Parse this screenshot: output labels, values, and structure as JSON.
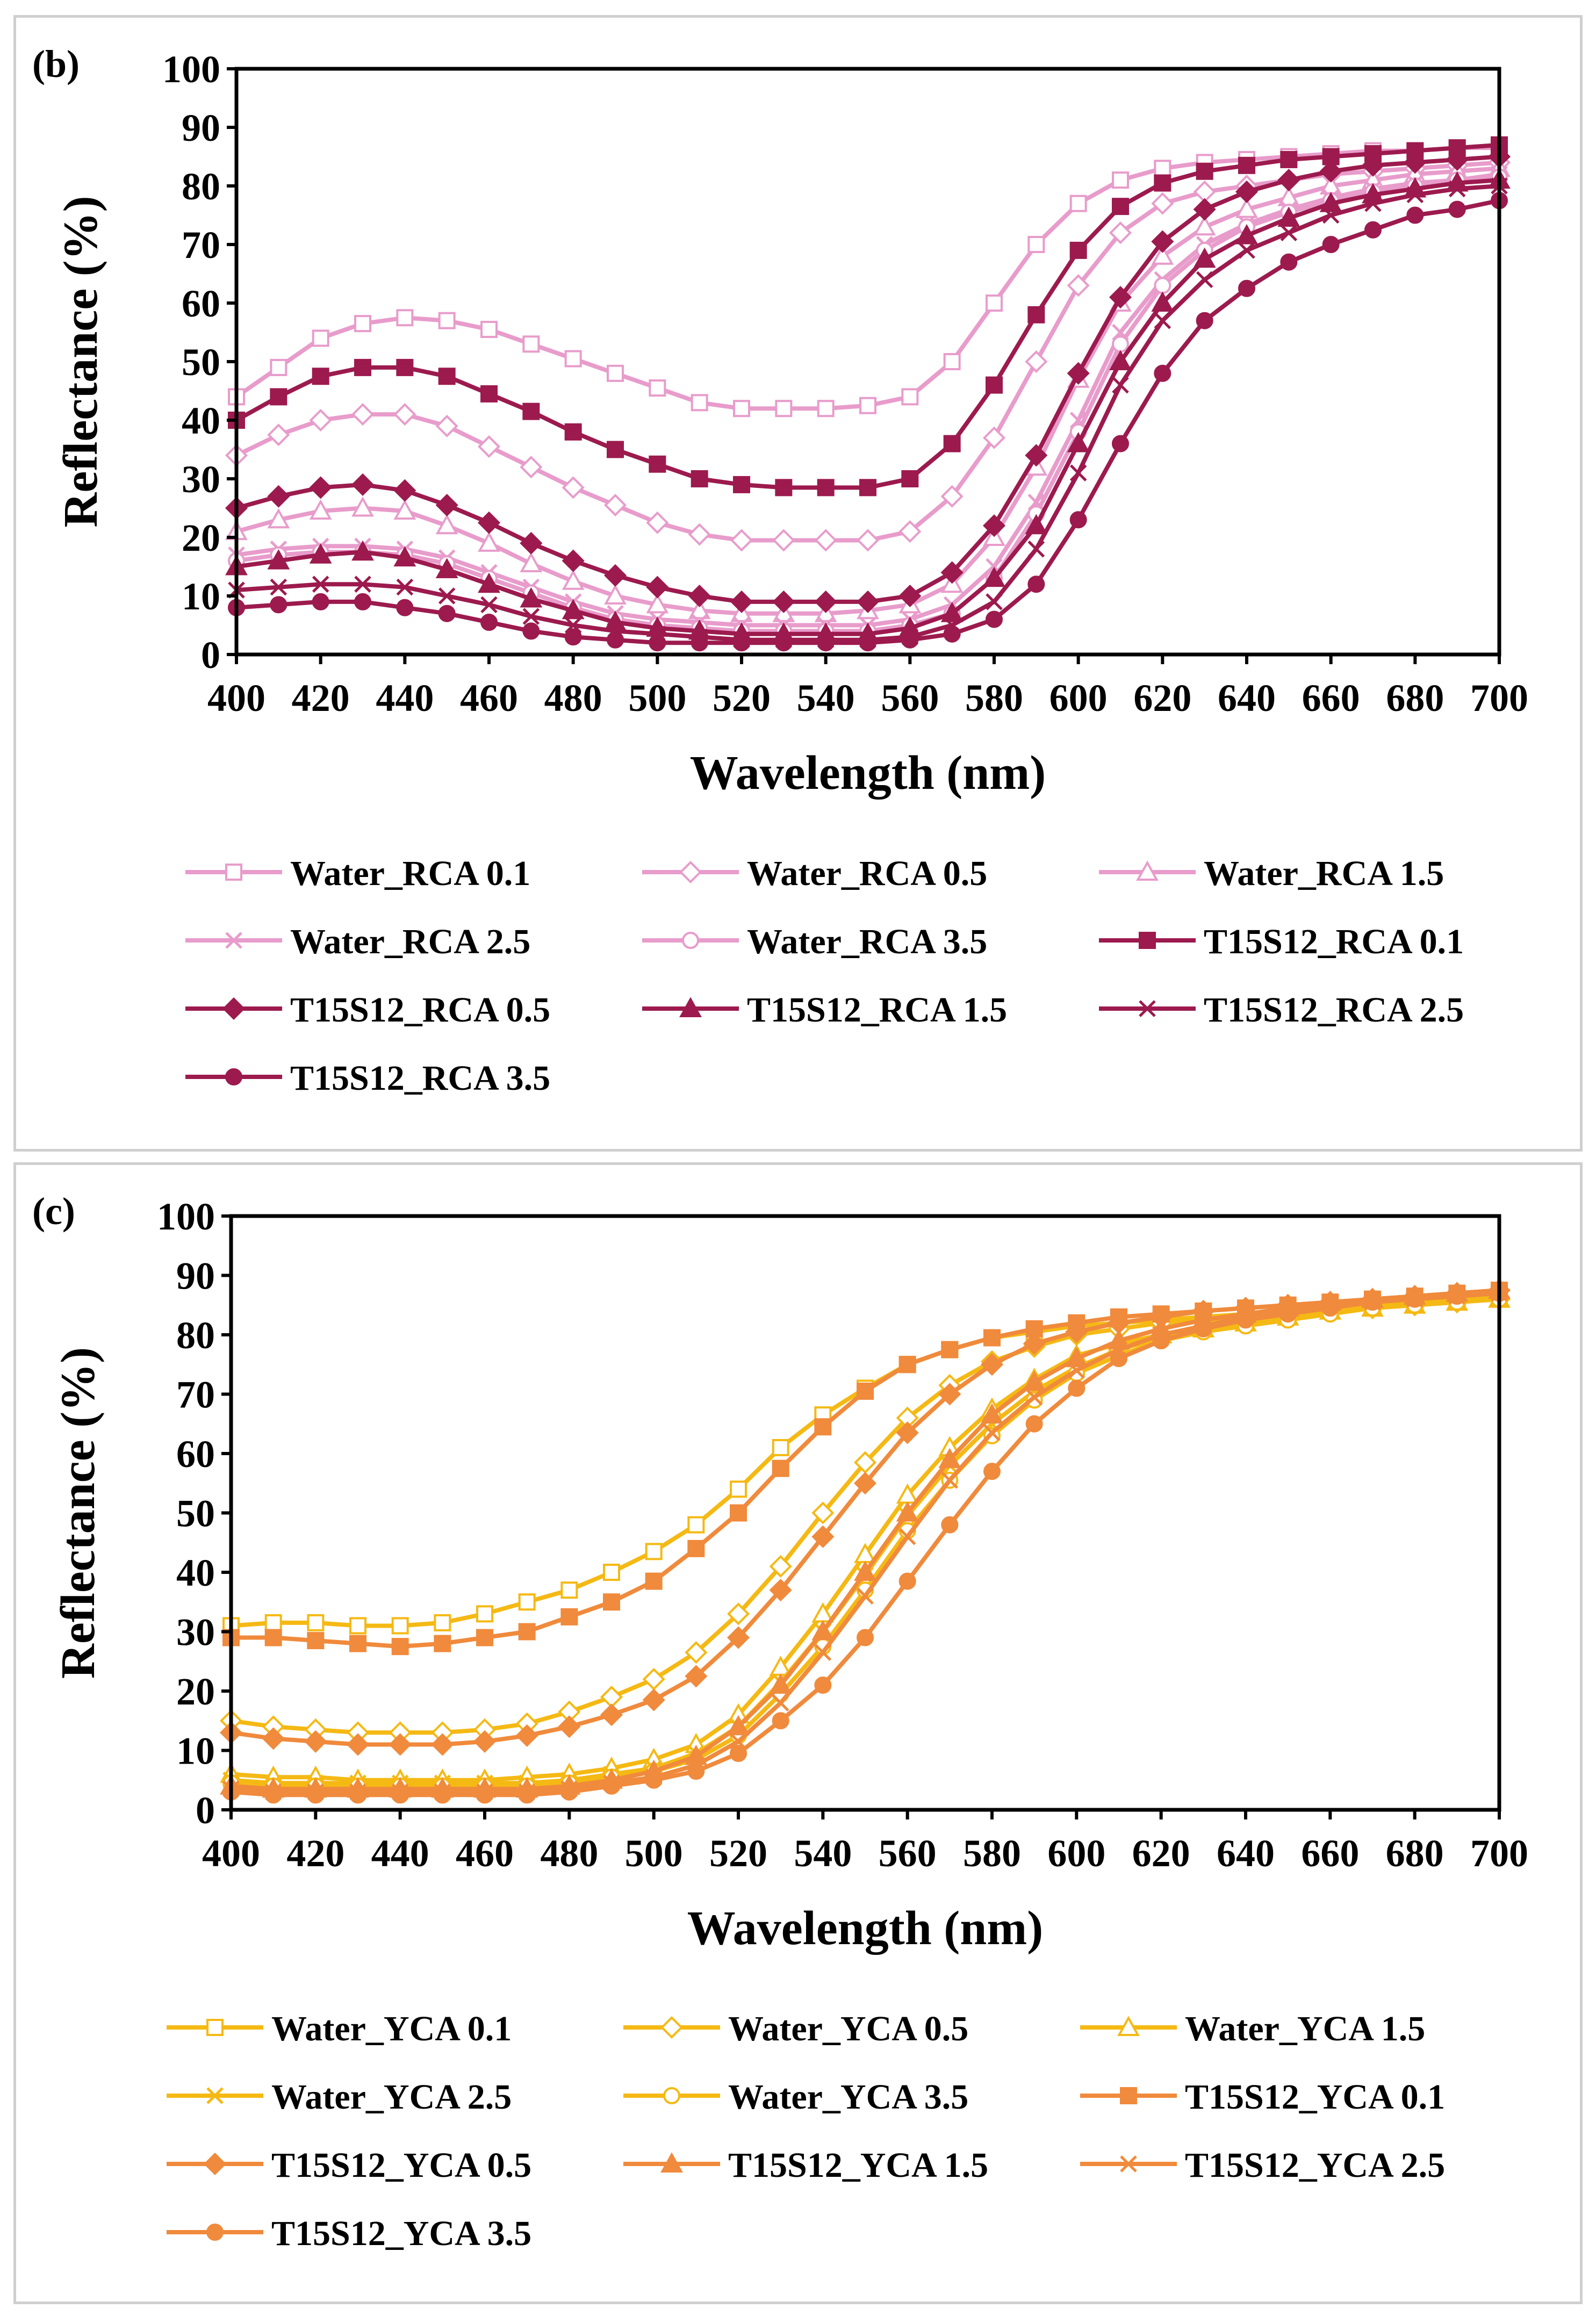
{
  "chart_data": [
    {
      "panel_label": "(b)",
      "type": "line",
      "xlabel": "Wavelength (nm)",
      "ylabel": "Reflectance (%)",
      "xlim": [
        400,
        700
      ],
      "ylim": [
        0,
        100
      ],
      "xticks": [
        "400",
        "420",
        "440",
        "460",
        "480",
        "500",
        "520",
        "540",
        "560",
        "580",
        "600",
        "620",
        "640",
        "660",
        "680",
        "700"
      ],
      "yticks": [
        "0",
        "10",
        "20",
        "30",
        "40",
        "50",
        "60",
        "70",
        "80",
        "90",
        "100"
      ],
      "x": [
        400,
        410,
        420,
        430,
        440,
        450,
        460,
        470,
        480,
        490,
        500,
        510,
        520,
        530,
        540,
        550,
        560,
        570,
        580,
        590,
        600,
        610,
        620,
        630,
        640,
        650,
        660,
        670,
        680,
        690,
        700
      ],
      "legend_placement": "bottom",
      "series": [
        {
          "name": "Water_RCA 0.1",
          "color": "#e89ccb",
          "marker": "square-open",
          "values": [
            44,
            49,
            54,
            56.5,
            57.5,
            57,
            55.5,
            53,
            50.5,
            48,
            45.5,
            43,
            42,
            42,
            42,
            42.5,
            44,
            50,
            60,
            70,
            77,
            81,
            83,
            84,
            84.5,
            85,
            85.5,
            86,
            86,
            86.5,
            86.5
          ]
        },
        {
          "name": "Water_RCA 0.5",
          "color": "#e89ccb",
          "marker": "diamond-open",
          "values": [
            34,
            37.5,
            40,
            41,
            41,
            39,
            35.5,
            32,
            28.5,
            25.5,
            22.5,
            20.5,
            19.5,
            19.5,
            19.5,
            19.5,
            21,
            27,
            37,
            50,
            63,
            72,
            77,
            79,
            80,
            81,
            82,
            82.5,
            83,
            83.5,
            84
          ]
        },
        {
          "name": "Water_RCA 1.5",
          "color": "#e89ccb",
          "marker": "triangle-open",
          "values": [
            21,
            23,
            24.5,
            25,
            24.5,
            22,
            19,
            15.5,
            12.5,
            10,
            8.5,
            7.5,
            7,
            7,
            7,
            7.5,
            8.5,
            12,
            20,
            32,
            47,
            60,
            68,
            73,
            76,
            78,
            80,
            81,
            82,
            82.5,
            83
          ]
        },
        {
          "name": "Water_RCA 2.5",
          "color": "#e89ccb",
          "marker": "x",
          "values": [
            17,
            18,
            18.5,
            18.5,
            18,
            16.5,
            14,
            11.5,
            9,
            7,
            6,
            5.5,
            5,
            5,
            5,
            5,
            6,
            8.5,
            15,
            26,
            40,
            55,
            64,
            70,
            73.5,
            76,
            78,
            79.5,
            80.5,
            81,
            82
          ]
        },
        {
          "name": "Water_RCA 3.5",
          "color": "#e89ccb",
          "marker": "circle-open",
          "values": [
            16,
            17,
            17.5,
            17.5,
            17,
            15.5,
            13,
            10.5,
            8,
            6,
            5,
            4.5,
            4,
            4,
            4,
            4,
            5,
            7,
            13,
            24,
            38,
            53,
            63,
            69,
            73,
            75.5,
            77.5,
            79,
            80,
            81,
            81.5
          ]
        },
        {
          "name": "T15S12_RCA 0.1",
          "color": "#9c1a4e",
          "marker": "square-filled",
          "values": [
            40,
            44,
            47.5,
            49,
            49,
            47.5,
            44.5,
            41.5,
            38,
            35,
            32.5,
            30,
            29,
            28.5,
            28.5,
            28.5,
            30,
            36,
            46,
            58,
            69,
            76.5,
            80.5,
            82.5,
            83.5,
            84.5,
            85,
            85.5,
            86,
            86.5,
            87
          ]
        },
        {
          "name": "T15S12_RCA 0.5",
          "color": "#9c1a4e",
          "marker": "diamond-filled",
          "values": [
            25,
            27,
            28.5,
            29,
            28,
            25.5,
            22.5,
            19,
            16,
            13.5,
            11.5,
            10,
            9,
            9,
            9,
            9,
            10,
            14,
            22,
            34,
            48,
            61,
            70.5,
            76,
            79,
            81,
            82.5,
            83.5,
            84,
            84.5,
            85
          ]
        },
        {
          "name": "T15S12_RCA 1.5",
          "color": "#9c1a4e",
          "marker": "triangle-filled",
          "values": [
            15,
            16,
            17,
            17.5,
            16.5,
            14.5,
            12,
            9.5,
            7.5,
            5.5,
            4.5,
            4,
            3.5,
            3.5,
            3.5,
            3.5,
            4.5,
            7,
            13,
            22,
            36,
            50,
            60,
            67.5,
            71.5,
            74.5,
            77,
            78.5,
            79.5,
            80.5,
            81
          ]
        },
        {
          "name": "T15S12_RCA 2.5",
          "color": "#9c1a4e",
          "marker": "x",
          "values": [
            11,
            11.5,
            12,
            12,
            11.5,
            10,
            8.5,
            6.5,
            5,
            4,
            3.5,
            3,
            2.5,
            2.5,
            2.5,
            2.5,
            3,
            5,
            9,
            18,
            31,
            46,
            57,
            64,
            69,
            72,
            75,
            77,
            78.5,
            79.5,
            80
          ]
        },
        {
          "name": "T15S12_RCA 3.5",
          "color": "#9c1a4e",
          "marker": "circle-filled",
          "values": [
            8,
            8.5,
            9,
            9,
            8,
            7,
            5.5,
            4,
            3,
            2.5,
            2,
            2,
            2,
            2,
            2,
            2,
            2.5,
            3.5,
            6,
            12,
            23,
            36,
            48,
            57,
            62.5,
            67,
            70,
            72.5,
            75,
            76,
            77.5
          ]
        }
      ]
    },
    {
      "panel_label": "(c)",
      "type": "line",
      "xlabel": "Wavelength (nm)",
      "ylabel": "Reflectance (%)",
      "xlim": [
        400,
        700
      ],
      "ylim": [
        0,
        100
      ],
      "xticks": [
        "400",
        "420",
        "440",
        "460",
        "480",
        "500",
        "520",
        "540",
        "560",
        "580",
        "600",
        "620",
        "640",
        "660",
        "680",
        "700"
      ],
      "yticks": [
        "0",
        "10",
        "20",
        "30",
        "40",
        "50",
        "60",
        "70",
        "80",
        "90",
        "100"
      ],
      "x": [
        400,
        410,
        420,
        430,
        440,
        450,
        460,
        470,
        480,
        490,
        500,
        510,
        520,
        530,
        540,
        550,
        560,
        570,
        580,
        590,
        600,
        610,
        620,
        630,
        640,
        650,
        660,
        670,
        680,
        690,
        700
      ],
      "legend_placement": "bottom",
      "series": [
        {
          "name": "Water_YCA 0.1",
          "color": "#f5b914",
          "marker": "square-open",
          "values": [
            31,
            31.5,
            31.5,
            31,
            31,
            31.5,
            33,
            35,
            37,
            40,
            43.5,
            48,
            54,
            61,
            66.5,
            71,
            75,
            77.5,
            79.5,
            80.5,
            81.5,
            82,
            82.5,
            83,
            83.5,
            84,
            84.5,
            85,
            85.5,
            86,
            86.5
          ]
        },
        {
          "name": "Water_YCA 0.5",
          "color": "#f5b914",
          "marker": "diamond-open",
          "values": [
            15,
            14,
            13.5,
            13,
            13,
            13,
            13.5,
            14.5,
            16.5,
            19,
            22,
            26.5,
            33,
            41,
            50,
            58.5,
            66,
            71.5,
            75.5,
            78,
            80,
            81,
            82,
            82.5,
            83,
            83.5,
            84,
            84.5,
            85,
            85.5,
            86
          ]
        },
        {
          "name": "Water_YCA 1.5",
          "color": "#f5b914",
          "marker": "triangle-open",
          "values": [
            6,
            5.5,
            5.5,
            5,
            5,
            5,
            5,
            5.5,
            6,
            7,
            8.5,
            11,
            16,
            24,
            33,
            43,
            53,
            61,
            67.5,
            72.5,
            76.5,
            78.5,
            80,
            81,
            82,
            83,
            84,
            84.5,
            85,
            85.5,
            86
          ]
        },
        {
          "name": "Water_YCA 2.5",
          "color": "#f5b914",
          "marker": "x",
          "values": [
            5,
            4.5,
            4.5,
            4.5,
            4.5,
            4.5,
            4.5,
            4.5,
            5,
            6,
            7,
            9.5,
            14,
            21.5,
            30,
            39.5,
            49.5,
            58,
            65,
            70.5,
            74.5,
            77.5,
            79.5,
            81,
            82,
            83,
            84,
            84.5,
            85,
            85.5,
            86
          ]
        },
        {
          "name": "Water_YCA 3.5",
          "color": "#f5b914",
          "marker": "circle-open",
          "values": [
            4.5,
            4,
            4,
            4,
            4,
            4,
            4,
            4,
            4.5,
            5.5,
            6.5,
            8.5,
            12.5,
            19.5,
            27.5,
            37,
            47,
            55.5,
            63,
            69,
            73.5,
            76.5,
            79,
            80.5,
            81.5,
            82.5,
            83.5,
            84.5,
            85,
            85.5,
            86
          ]
        },
        {
          "name": "T15S12_YCA 0.1",
          "color": "#f08a3c",
          "marker": "square-filled",
          "values": [
            29,
            29,
            28.5,
            28,
            27.5,
            28,
            29,
            30,
            32.5,
            35,
            38.5,
            44,
            50,
            57.5,
            64.5,
            70.5,
            75,
            77.5,
            79.5,
            81,
            82,
            83,
            83.5,
            84,
            84.5,
            85,
            85.5,
            86,
            86.5,
            87,
            87.5
          ]
        },
        {
          "name": "T15S12_YCA 0.5",
          "color": "#f08a3c",
          "marker": "diamond-filled",
          "values": [
            13,
            12,
            11.5,
            11,
            11,
            11,
            11.5,
            12.5,
            14,
            16,
            18.5,
            22.5,
            29,
            37,
            46,
            55,
            63.5,
            70,
            75,
            78.5,
            80.5,
            82,
            83,
            84,
            84.5,
            85,
            85.5,
            86,
            86.5,
            87,
            87.5
          ]
        },
        {
          "name": "T15S12_YCA 1.5",
          "color": "#f08a3c",
          "marker": "triangle-filled",
          "values": [
            4,
            3.5,
            3.5,
            3.5,
            3.5,
            3.5,
            3.5,
            3.5,
            4,
            5,
            6.5,
            9,
            14,
            21,
            30,
            40,
            50,
            59,
            66.5,
            72,
            76,
            79,
            81,
            82.5,
            83.5,
            84.5,
            85.5,
            86,
            86.5,
            87,
            87.5
          ]
        },
        {
          "name": "T15S12_YCA 2.5",
          "color": "#f08a3c",
          "marker": "x",
          "values": [
            3.5,
            3,
            3,
            3,
            3,
            3,
            3,
            3,
            3.5,
            4.5,
            5.5,
            7.5,
            11.5,
            18,
            26.5,
            36,
            46,
            55.5,
            63.5,
            69.5,
            74,
            77.5,
            80,
            81.5,
            83,
            84,
            85,
            85.5,
            86,
            86.5,
            87
          ]
        },
        {
          "name": "T15S12_YCA 3.5",
          "color": "#f08a3c",
          "marker": "circle-filled",
          "values": [
            3,
            2.5,
            2.5,
            2.5,
            2.5,
            2.5,
            2.5,
            2.5,
            3,
            4,
            5,
            6.5,
            9.5,
            15,
            21,
            29,
            38.5,
            48,
            57,
            65,
            71,
            76,
            79,
            81,
            82.5,
            83.5,
            84.5,
            85.5,
            86,
            86.5,
            87
          ]
        }
      ]
    }
  ]
}
